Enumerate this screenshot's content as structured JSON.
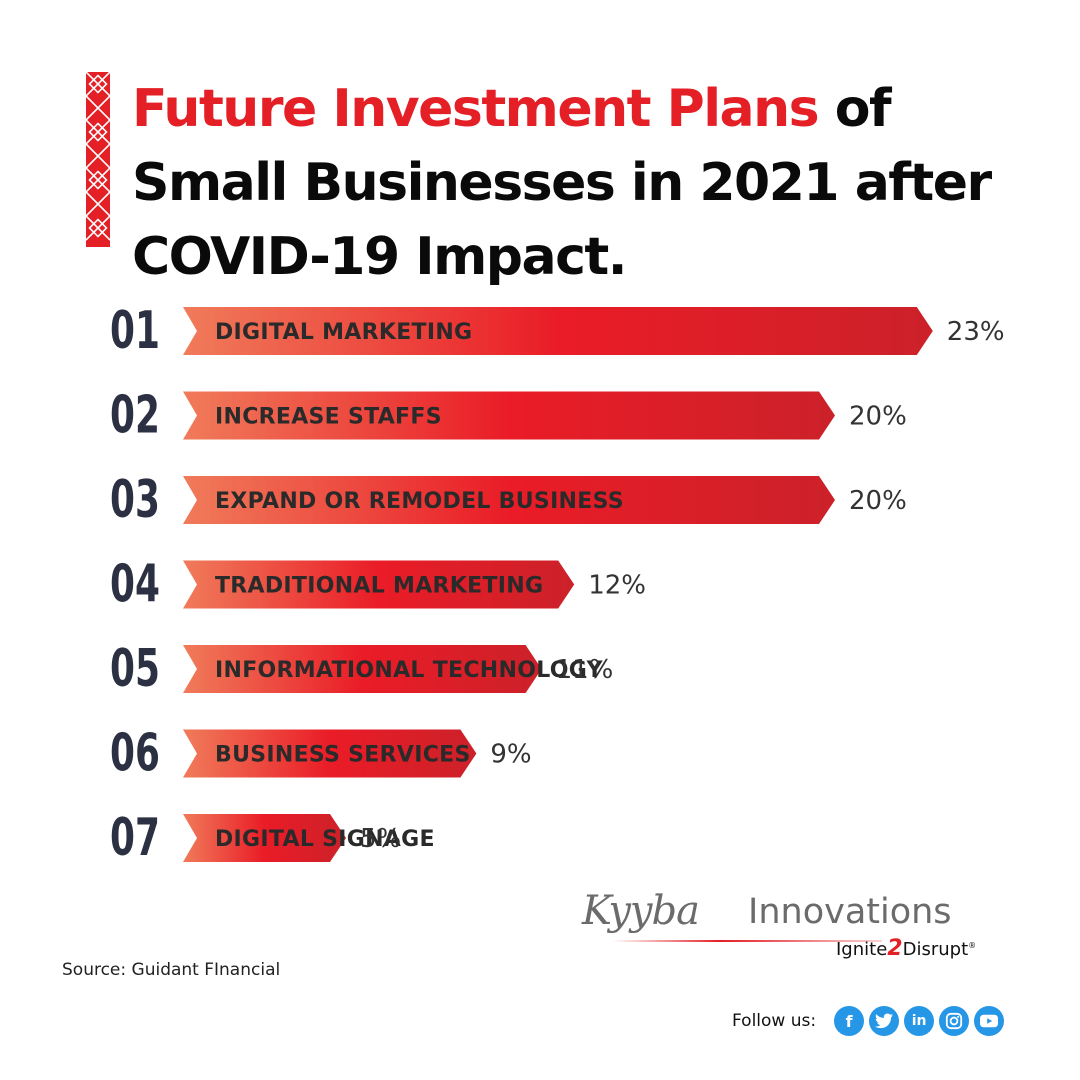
{
  "header": {
    "title_red": "Future Investment Plans",
    "title_rest_1": " of",
    "title_line_2": "Small Businesses in 2021 after",
    "title_line_3": "COVID-19 Impact."
  },
  "chart_data": {
    "type": "bar",
    "orientation": "horizontal",
    "ranks": [
      "01",
      "02",
      "03",
      "04",
      "05",
      "06",
      "07"
    ],
    "categories": [
      "DIGITAL MARKETING",
      "INCREASE STAFFS",
      "EXPAND OR REMODEL BUSINESS",
      "TRADITIONAL MARKETING",
      "INFORMATIONAL TECHNOLOGY",
      "BUSINESS SERVICES",
      "DIGITAL SIGNAGE"
    ],
    "values": [
      23,
      20,
      20,
      12,
      11,
      9,
      5
    ],
    "value_labels": [
      "23%",
      "20%",
      "20%",
      "12%",
      "11%",
      "9%",
      "5%"
    ],
    "unit": "%",
    "grid": false,
    "legend": "none",
    "bar_colors": {
      "start": "#f07b5a",
      "mid": "#ea1c27",
      "end": "#cc2129"
    }
  },
  "footer": {
    "source": "Source: Guidant FInancial",
    "logo_wordmark": "Kyyba",
    "logo_name": "Innovations",
    "tagline_a": "Ignite",
    "tagline_2": "2",
    "tagline_b": "Disrupt",
    "tagline_mark": "®",
    "follow_label": "Follow us:",
    "social": [
      {
        "icon": "facebook-icon",
        "glyph": "f"
      },
      {
        "icon": "twitter-icon",
        "glyph": ""
      },
      {
        "icon": "linkedin-icon",
        "glyph": "in"
      },
      {
        "icon": "instagram-icon",
        "glyph": ""
      },
      {
        "icon": "youtube-icon",
        "glyph": ""
      }
    ]
  },
  "colors": {
    "accent": "#e41f26",
    "text_dark": "#2b3142",
    "social": "#2696e6"
  }
}
